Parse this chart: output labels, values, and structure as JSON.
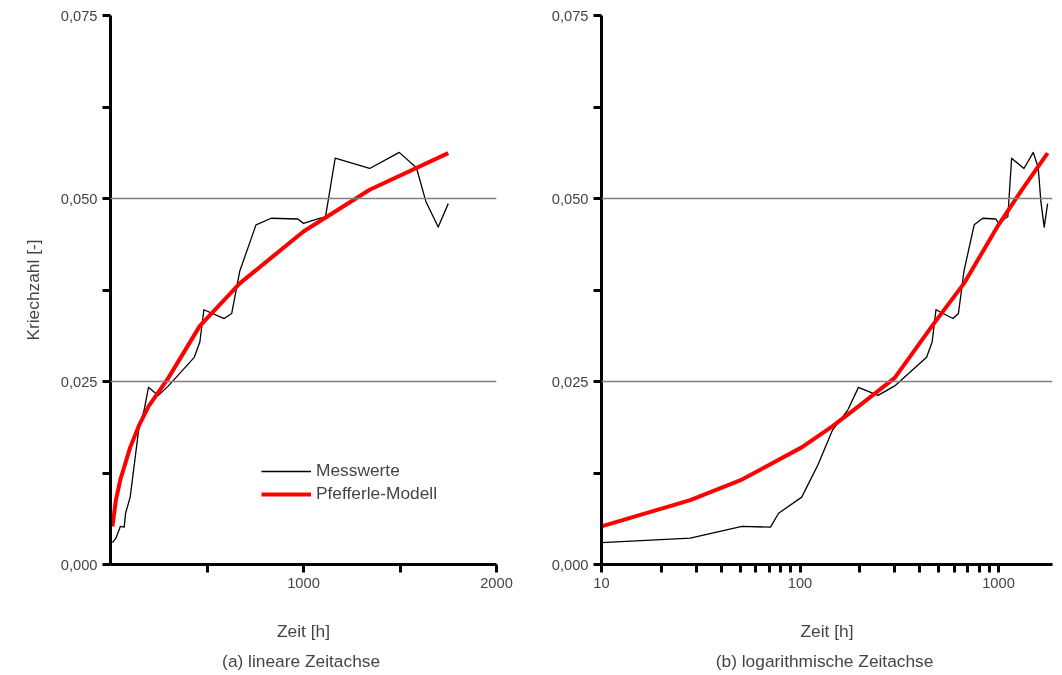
{
  "chart_data": [
    {
      "type": "line",
      "xlabel": "Zeit [h]",
      "ylabel": "Kriechzahl [-]",
      "annotations": [
        "(a)  lineare Zeitachse"
      ],
      "xlim": [
        0,
        2000
      ],
      "xticks": [
        {
          "value": 500,
          "label": null
        },
        1000,
        {
          "value": 1500,
          "label": null
        },
        2000
      ],
      "ylim": [
        0,
        0.075
      ],
      "yticks": [
        {
          "value": 0,
          "label": "0,000"
        },
        {
          "value": 0.0125,
          "label": null
        },
        {
          "value": 0.025,
          "label": "0,025"
        },
        {
          "value": 0.0375,
          "label": null
        },
        {
          "value": 0.05,
          "label": "0,050"
        },
        {
          "value": 0.0625,
          "label": null
        },
        {
          "value": 0.075,
          "label": "0,075"
        }
      ],
      "ref_lines": [
        {
          "axis": "y",
          "value": 0.025,
          "color": "#808080"
        },
        {
          "axis": "y",
          "value": 0.05,
          "color": "#808080"
        }
      ],
      "legend": "bottom right",
      "series": [
        {
          "name": "Messwerte",
          "color": "#000000",
          "x": [
            10,
            28,
            51,
            71,
            78,
            102,
            123,
            146,
            174,
            197,
            247,
            300,
            434,
            463,
            484,
            589,
            628,
            670,
            754,
            833,
            970,
            1000,
            1082,
            1114,
            1164,
            1343,
            1496,
            1585,
            1634,
            1698,
            1750
          ],
          "values": [
            0.003,
            0.0036,
            0.0052,
            0.0051,
            0.007,
            0.0092,
            0.0136,
            0.0184,
            0.0211,
            0.0242,
            0.0231,
            0.0244,
            0.0283,
            0.0304,
            0.0348,
            0.0336,
            0.0343,
            0.0401,
            0.0464,
            0.0473,
            0.0472,
            0.0466,
            0.0473,
            0.0475,
            0.0555,
            0.0541,
            0.0563,
            0.0542,
            0.0496,
            0.0461,
            0.0493
          ]
        },
        {
          "name": "Pfefferle-Modell",
          "color": "#ff0000",
          "x": [
            10,
            28,
            51,
            102,
            146,
            197,
            300,
            463,
            670,
            1000,
            1343,
            1750
          ],
          "values": [
            0.0052,
            0.0088,
            0.0116,
            0.016,
            0.0189,
            0.0216,
            0.0255,
            0.0326,
            0.0384,
            0.0455,
            0.0512,
            0.0562
          ]
        }
      ]
    },
    {
      "type": "line",
      "xlabel": "Zeit [h]",
      "annotations": [
        "(b)  logarithmische Zeitachse"
      ],
      "log": "x",
      "xlim": [
        10,
        1870
      ],
      "xticks": [
        10,
        {
          "value": 20,
          "label": null
        },
        {
          "value": 30,
          "label": null
        },
        {
          "value": 40,
          "label": null
        },
        {
          "value": 50,
          "label": null
        },
        {
          "value": 60,
          "label": null
        },
        {
          "value": 70,
          "label": null
        },
        {
          "value": 80,
          "label": null
        },
        {
          "value": 90,
          "label": null
        },
        100,
        {
          "value": 200,
          "label": null
        },
        {
          "value": 300,
          "label": null
        },
        {
          "value": 400,
          "label": null
        },
        {
          "value": 500,
          "label": null
        },
        {
          "value": 600,
          "label": null
        },
        {
          "value": 700,
          "label": null
        },
        {
          "value": 800,
          "label": null
        },
        {
          "value": 900,
          "label": null
        },
        1000
      ],
      "ylim": [
        0,
        0.075
      ],
      "yticks": [
        {
          "value": 0,
          "label": "0,000"
        },
        {
          "value": 0.0125,
          "label": null
        },
        {
          "value": 0.025,
          "label": "0,025"
        },
        {
          "value": 0.0375,
          "label": null
        },
        {
          "value": 0.05,
          "label": "0,050"
        },
        {
          "value": 0.0625,
          "label": null
        },
        {
          "value": 0.075,
          "label": "0,075"
        }
      ],
      "ref_lines": [
        {
          "axis": "y",
          "value": 0.025,
          "color": "#808080"
        },
        {
          "axis": "y",
          "value": 0.05,
          "color": "#808080"
        }
      ],
      "series": [
        {
          "color": "#000000",
          "x": [
            10,
            28,
            51,
            71,
            78,
            102,
            123,
            146,
            174,
            197,
            247,
            300,
            434,
            463,
            484,
            589,
            628,
            670,
            754,
            833,
            970,
            1000,
            1082,
            1114,
            1164,
            1343,
            1496,
            1585,
            1634,
            1698,
            1767
          ],
          "values": [
            0.003,
            0.0036,
            0.0052,
            0.0051,
            0.007,
            0.0092,
            0.0136,
            0.0184,
            0.0211,
            0.0242,
            0.0231,
            0.0244,
            0.0283,
            0.0304,
            0.0348,
            0.0336,
            0.0343,
            0.0401,
            0.0464,
            0.0473,
            0.0472,
            0.0466,
            0.0473,
            0.0475,
            0.0555,
            0.0541,
            0.0563,
            0.0542,
            0.0496,
            0.0461,
            0.0493
          ]
        },
        {
          "color": "#ff0000",
          "x": [
            10,
            28,
            51,
            102,
            146,
            197,
            300,
            463,
            670,
            1000,
            1343,
            1767
          ],
          "values": [
            0.0052,
            0.0088,
            0.0116,
            0.016,
            0.0189,
            0.0216,
            0.0255,
            0.0326,
            0.0384,
            0.0464,
            0.0516,
            0.0562
          ]
        }
      ]
    }
  ]
}
